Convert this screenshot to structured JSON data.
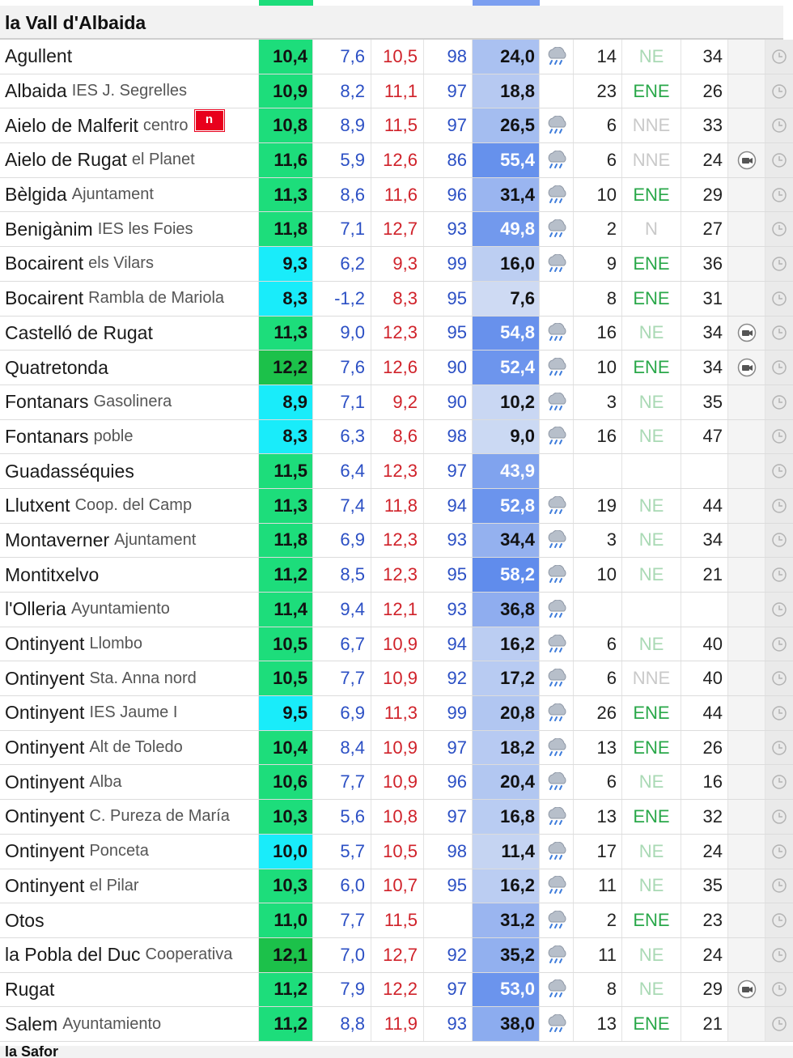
{
  "region_title": "la Vall d'Albaida",
  "next_region_title": "la Safor",
  "colors": {
    "temp_green": "#1ddd7b",
    "temp_cyan": "#19ecfa",
    "temp_dark_green": "#1cc14a",
    "tmin_blue": "#2b4fc4",
    "tmax_red": "#d0222a",
    "dir_green": "#2aa84a",
    "badge_red": "#e8001c"
  },
  "icons": {
    "rain": "rain-cloud-icon",
    "camera": "camera-icon",
    "clock": "clock-icon",
    "news_badge": "n-badge-icon"
  },
  "rows": [
    {
      "station": "Agullent",
      "sub": "",
      "t": "10,4",
      "tband": "green",
      "tmin": "7,6",
      "tmax": "10,5",
      "hum": "98",
      "rain": "24,0",
      "rain_level": 0.41,
      "rain_icon": true,
      "wind": "14",
      "dir": "NE",
      "dir_style": "light",
      "gust": "34",
      "camera": false,
      "badge": ""
    },
    {
      "station": "Albaida",
      "sub": "IES J. Segrelles",
      "t": "10,9",
      "tband": "green",
      "tmin": "8,2",
      "tmax": "11,1",
      "hum": "97",
      "rain": "18,8",
      "rain_level": 0.32,
      "rain_icon": false,
      "wind": "23",
      "dir": "ENE",
      "dir_style": "strong",
      "gust": "26",
      "camera": false,
      "badge": ""
    },
    {
      "station": "Aielo de Malferit",
      "sub": "centro",
      "t": "10,8",
      "tband": "green",
      "tmin": "8,9",
      "tmax": "11,5",
      "hum": "97",
      "rain": "26,5",
      "rain_level": 0.46,
      "rain_icon": true,
      "wind": "6",
      "dir": "NNE",
      "dir_style": "grey",
      "gust": "33",
      "camera": false,
      "badge": "n"
    },
    {
      "station": "Aielo de Rugat",
      "sub": "el Planet",
      "t": "11,6",
      "tband": "green",
      "tmin": "5,9",
      "tmax": "12,6",
      "hum": "86",
      "rain": "55,4",
      "rain_level": 0.95,
      "rain_icon": true,
      "wind": "6",
      "dir": "NNE",
      "dir_style": "grey",
      "gust": "24",
      "camera": true,
      "badge": ""
    },
    {
      "station": "Bèlgida",
      "sub": "Ajuntament",
      "t": "11,3",
      "tband": "green",
      "tmin": "8,6",
      "tmax": "11,6",
      "hum": "96",
      "rain": "31,4",
      "rain_level": 0.54,
      "rain_icon": true,
      "wind": "10",
      "dir": "ENE",
      "dir_style": "strong",
      "gust": "29",
      "camera": false,
      "badge": ""
    },
    {
      "station": "Benigànim",
      "sub": "IES les Foies",
      "t": "11,8",
      "tband": "green",
      "tmin": "7,1",
      "tmax": "12,7",
      "hum": "93",
      "rain": "49,8",
      "rain_level": 0.86,
      "rain_icon": true,
      "wind": "2",
      "dir": "N",
      "dir_style": "grey",
      "gust": "27",
      "camera": false,
      "badge": ""
    },
    {
      "station": "Bocairent",
      "sub": "els Vilars",
      "t": "9,3",
      "tband": "cyan",
      "tmin": "6,2",
      "tmax": "9,3",
      "hum": "99",
      "rain": "16,0",
      "rain_level": 0.27,
      "rain_icon": true,
      "wind": "9",
      "dir": "ENE",
      "dir_style": "strong",
      "gust": "36",
      "camera": false,
      "badge": ""
    },
    {
      "station": "Bocairent",
      "sub": "Rambla de Mariola",
      "t": "8,3",
      "tband": "cyan",
      "tmin": "-1,2",
      "tmax": "8,3",
      "hum": "95",
      "rain": "7,6",
      "rain_level": 0.13,
      "rain_icon": false,
      "wind": "8",
      "dir": "ENE",
      "dir_style": "strong",
      "gust": "31",
      "camera": false,
      "badge": ""
    },
    {
      "station": "Castelló de Rugat",
      "sub": "",
      "t": "11,3",
      "tband": "green",
      "tmin": "9,0",
      "tmax": "12,3",
      "hum": "95",
      "rain": "54,8",
      "rain_level": 0.94,
      "rain_icon": true,
      "wind": "16",
      "dir": "NE",
      "dir_style": "light",
      "gust": "34",
      "camera": true,
      "badge": ""
    },
    {
      "station": "Quatretonda",
      "sub": "",
      "t": "12,2",
      "tband": "darkgreen",
      "tmin": "7,6",
      "tmax": "12,6",
      "hum": "90",
      "rain": "52,4",
      "rain_level": 0.9,
      "rain_icon": true,
      "wind": "10",
      "dir": "ENE",
      "dir_style": "strong",
      "gust": "34",
      "camera": true,
      "badge": ""
    },
    {
      "station": "Fontanars",
      "sub": "Gasolinera",
      "t": "8,9",
      "tband": "cyan",
      "tmin": "7,1",
      "tmax": "9,2",
      "hum": "90",
      "rain": "10,2",
      "rain_level": 0.17,
      "rain_icon": true,
      "wind": "3",
      "dir": "NE",
      "dir_style": "light",
      "gust": "35",
      "camera": false,
      "badge": ""
    },
    {
      "station": "Fontanars",
      "sub": "poble",
      "t": "8,3",
      "tband": "cyan",
      "tmin": "6,3",
      "tmax": "8,6",
      "hum": "98",
      "rain": "9,0",
      "rain_level": 0.15,
      "rain_icon": true,
      "wind": "16",
      "dir": "NE",
      "dir_style": "light",
      "gust": "47",
      "camera": false,
      "badge": ""
    },
    {
      "station": "Guadasséquies",
      "sub": "",
      "t": "11,5",
      "tband": "green",
      "tmin": "6,4",
      "tmax": "12,3",
      "hum": "97",
      "rain": "43,9",
      "rain_level": 0.75,
      "rain_icon": false,
      "wind": "",
      "dir": "",
      "dir_style": "light",
      "gust": "",
      "camera": false,
      "badge": ""
    },
    {
      "station": "Llutxent",
      "sub": "Coop. del Camp",
      "t": "11,3",
      "tband": "green",
      "tmin": "7,4",
      "tmax": "11,8",
      "hum": "94",
      "rain": "52,8",
      "rain_level": 0.91,
      "rain_icon": true,
      "wind": "19",
      "dir": "NE",
      "dir_style": "light",
      "gust": "44",
      "camera": false,
      "badge": ""
    },
    {
      "station": "Montaverner",
      "sub": "Ajuntament",
      "t": "11,8",
      "tband": "green",
      "tmin": "6,9",
      "tmax": "12,3",
      "hum": "93",
      "rain": "34,4",
      "rain_level": 0.59,
      "rain_icon": true,
      "wind": "3",
      "dir": "NE",
      "dir_style": "light",
      "gust": "34",
      "camera": false,
      "badge": ""
    },
    {
      "station": "Montitxelvo",
      "sub": "",
      "t": "11,2",
      "tband": "green",
      "tmin": "8,5",
      "tmax": "12,3",
      "hum": "95",
      "rain": "58,2",
      "rain_level": 1.0,
      "rain_icon": true,
      "wind": "10",
      "dir": "NE",
      "dir_style": "light",
      "gust": "21",
      "camera": false,
      "badge": ""
    },
    {
      "station": "l'Olleria",
      "sub": "Ayuntamiento",
      "t": "11,4",
      "tband": "green",
      "tmin": "9,4",
      "tmax": "12,1",
      "hum": "93",
      "rain": "36,8",
      "rain_level": 0.63,
      "rain_icon": true,
      "wind": "",
      "dir": "",
      "dir_style": "light",
      "gust": "",
      "camera": false,
      "badge": ""
    },
    {
      "station": "Ontinyent",
      "sub": "Llombo",
      "t": "10,5",
      "tband": "green",
      "tmin": "6,7",
      "tmax": "10,9",
      "hum": "94",
      "rain": "16,2",
      "rain_level": 0.28,
      "rain_icon": true,
      "wind": "6",
      "dir": "NE",
      "dir_style": "light",
      "gust": "40",
      "camera": false,
      "badge": ""
    },
    {
      "station": "Ontinyent",
      "sub": "Sta. Anna nord",
      "t": "10,5",
      "tband": "green",
      "tmin": "7,7",
      "tmax": "10,9",
      "hum": "92",
      "rain": "17,2",
      "rain_level": 0.3,
      "rain_icon": true,
      "wind": "6",
      "dir": "NNE",
      "dir_style": "grey",
      "gust": "40",
      "camera": false,
      "badge": ""
    },
    {
      "station": "Ontinyent",
      "sub": "IES Jaume I",
      "t": "9,5",
      "tband": "cyan",
      "tmin": "6,9",
      "tmax": "11,3",
      "hum": "99",
      "rain": "20,8",
      "rain_level": 0.36,
      "rain_icon": true,
      "wind": "26",
      "dir": "ENE",
      "dir_style": "strong",
      "gust": "44",
      "camera": false,
      "badge": ""
    },
    {
      "station": "Ontinyent",
      "sub": "Alt de Toledo",
      "t": "10,4",
      "tband": "green",
      "tmin": "8,4",
      "tmax": "10,9",
      "hum": "97",
      "rain": "18,2",
      "rain_level": 0.31,
      "rain_icon": true,
      "wind": "13",
      "dir": "ENE",
      "dir_style": "strong",
      "gust": "26",
      "camera": false,
      "badge": ""
    },
    {
      "station": "Ontinyent",
      "sub": "Alba",
      "t": "10,6",
      "tband": "green",
      "tmin": "7,7",
      "tmax": "10,9",
      "hum": "96",
      "rain": "20,4",
      "rain_level": 0.35,
      "rain_icon": true,
      "wind": "6",
      "dir": "NE",
      "dir_style": "light",
      "gust": "16",
      "camera": false,
      "badge": ""
    },
    {
      "station": "Ontinyent",
      "sub": "C. Pureza de María",
      "t": "10,3",
      "tband": "green",
      "tmin": "5,6",
      "tmax": "10,8",
      "hum": "97",
      "rain": "16,8",
      "rain_level": 0.29,
      "rain_icon": true,
      "wind": "13",
      "dir": "ENE",
      "dir_style": "strong",
      "gust": "32",
      "camera": false,
      "badge": ""
    },
    {
      "station": "Ontinyent",
      "sub": "Ponceta",
      "t": "10,0",
      "tband": "cyan",
      "tmin": "5,7",
      "tmax": "10,5",
      "hum": "98",
      "rain": "11,4",
      "rain_level": 0.2,
      "rain_icon": true,
      "wind": "17",
      "dir": "NE",
      "dir_style": "light",
      "gust": "24",
      "camera": false,
      "badge": ""
    },
    {
      "station": "Ontinyent",
      "sub": "el Pilar",
      "t": "10,3",
      "tband": "green",
      "tmin": "6,0",
      "tmax": "10,7",
      "hum": "95",
      "rain": "16,2",
      "rain_level": 0.28,
      "rain_icon": true,
      "wind": "11",
      "dir": "NE",
      "dir_style": "light",
      "gust": "35",
      "camera": false,
      "badge": ""
    },
    {
      "station": "Otos",
      "sub": "",
      "t": "11,0",
      "tband": "green",
      "tmin": "7,7",
      "tmax": "11,5",
      "hum": "",
      "rain": "31,2",
      "rain_level": 0.54,
      "rain_icon": true,
      "wind": "2",
      "dir": "ENE",
      "dir_style": "strong",
      "gust": "23",
      "camera": false,
      "badge": ""
    },
    {
      "station": "la Pobla del Duc",
      "sub": "Cooperativa",
      "t": "12,1",
      "tband": "darkgreen",
      "tmin": "7,0",
      "tmax": "12,7",
      "hum": "92",
      "rain": "35,2",
      "rain_level": 0.6,
      "rain_icon": true,
      "wind": "11",
      "dir": "NE",
      "dir_style": "light",
      "gust": "24",
      "camera": false,
      "badge": ""
    },
    {
      "station": "Rugat",
      "sub": "",
      "t": "11,2",
      "tband": "green",
      "tmin": "7,9",
      "tmax": "12,2",
      "hum": "97",
      "rain": "53,0",
      "rain_level": 0.91,
      "rain_icon": true,
      "wind": "8",
      "dir": "NE",
      "dir_style": "light",
      "gust": "29",
      "camera": true,
      "badge": ""
    },
    {
      "station": "Salem",
      "sub": "Ayuntamiento",
      "t": "11,2",
      "tband": "green",
      "tmin": "8,8",
      "tmax": "11,9",
      "hum": "93",
      "rain": "38,0",
      "rain_level": 0.65,
      "rain_icon": true,
      "wind": "13",
      "dir": "ENE",
      "dir_style": "strong",
      "gust": "21",
      "camera": false,
      "badge": ""
    }
  ]
}
